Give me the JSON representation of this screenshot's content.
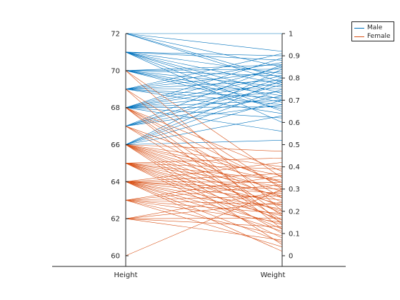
{
  "chart_data": {
    "type": "parallel-coordinates",
    "axes": [
      {
        "name": "Height",
        "range": [
          60,
          72
        ],
        "ticks": [
          60,
          62,
          64,
          66,
          68,
          70,
          72
        ],
        "tick_labels": [
          "60",
          "62",
          "64",
          "66",
          "68",
          "70",
          "72"
        ],
        "side": "left"
      },
      {
        "name": "Weight",
        "range": [
          0,
          1
        ],
        "ticks": [
          0,
          0.1,
          0.2,
          0.3,
          0.4,
          0.5,
          0.6,
          0.7,
          0.8,
          0.9,
          1
        ],
        "tick_labels": [
          "0",
          "0.1",
          "0.2",
          "0.3",
          "0.4",
          "0.5",
          "0.6",
          "0.7",
          "0.8",
          "0.9",
          "1"
        ],
        "side": "right"
      }
    ],
    "series": [
      {
        "name": "Male",
        "color": "#0072BD",
        "lines": [
          [
            72,
            1.0
          ],
          [
            72,
            0.92
          ],
          [
            72,
            0.85
          ],
          [
            72,
            0.8
          ],
          [
            72,
            0.78
          ],
          [
            71,
            0.9
          ],
          [
            71,
            0.88
          ],
          [
            71,
            0.82
          ],
          [
            71,
            0.77
          ],
          [
            71,
            0.73
          ],
          [
            71,
            0.7
          ],
          [
            71,
            0.65
          ],
          [
            71,
            0.6
          ],
          [
            70,
            0.86
          ],
          [
            70,
            0.84
          ],
          [
            70,
            0.81
          ],
          [
            70,
            0.76
          ],
          [
            70,
            0.72
          ],
          [
            70,
            0.69
          ],
          [
            70,
            0.66
          ],
          [
            69,
            0.91
          ],
          [
            69,
            0.87
          ],
          [
            69,
            0.83
          ],
          [
            69,
            0.79
          ],
          [
            69,
            0.75
          ],
          [
            69,
            0.71
          ],
          [
            69,
            0.68
          ],
          [
            69,
            0.64
          ],
          [
            68,
            0.89
          ],
          [
            68,
            0.85
          ],
          [
            68,
            0.81
          ],
          [
            68,
            0.78
          ],
          [
            68,
            0.74
          ],
          [
            68,
            0.7
          ],
          [
            68,
            0.67
          ],
          [
            68,
            0.62
          ],
          [
            68,
            0.56
          ],
          [
            67,
            0.86
          ],
          [
            67,
            0.8
          ],
          [
            67,
            0.77
          ],
          [
            67,
            0.72
          ],
          [
            67,
            0.68
          ],
          [
            66,
            0.84
          ],
          [
            66,
            0.79
          ],
          [
            66,
            0.75
          ],
          [
            66,
            0.7
          ],
          [
            66,
            0.63
          ],
          [
            66,
            0.52
          ]
        ]
      },
      {
        "name": "Female",
        "color": "#D95319",
        "lines": [
          [
            70,
            0.35
          ],
          [
            70,
            0.2
          ],
          [
            69,
            0.3
          ],
          [
            69,
            0.14
          ],
          [
            68,
            0.38
          ],
          [
            68,
            0.31
          ],
          [
            68,
            0.26
          ],
          [
            68,
            0.18
          ],
          [
            68,
            0.12
          ],
          [
            67,
            0.33
          ],
          [
            67,
            0.24
          ],
          [
            67,
            0.16
          ],
          [
            66,
            0.47
          ],
          [
            66,
            0.4
          ],
          [
            66,
            0.36
          ],
          [
            66,
            0.33
          ],
          [
            66,
            0.29
          ],
          [
            66,
            0.26
          ],
          [
            66,
            0.22
          ],
          [
            66,
            0.19
          ],
          [
            66,
            0.15
          ],
          [
            66,
            0.1
          ],
          [
            66,
            0.05
          ],
          [
            65,
            0.44
          ],
          [
            65,
            0.39
          ],
          [
            65,
            0.34
          ],
          [
            65,
            0.31
          ],
          [
            65,
            0.27
          ],
          [
            65,
            0.23
          ],
          [
            65,
            0.2
          ],
          [
            65,
            0.16
          ],
          [
            65,
            0.12
          ],
          [
            65,
            0.08
          ],
          [
            64,
            0.42
          ],
          [
            64,
            0.37
          ],
          [
            64,
            0.33
          ],
          [
            64,
            0.3
          ],
          [
            64,
            0.28
          ],
          [
            64,
            0.25
          ],
          [
            64,
            0.21
          ],
          [
            64,
            0.18
          ],
          [
            64,
            0.14
          ],
          [
            64,
            0.11
          ],
          [
            64,
            0.06
          ],
          [
            64,
            0.02
          ],
          [
            63,
            0.36
          ],
          [
            63,
            0.32
          ],
          [
            63,
            0.27
          ],
          [
            63,
            0.23
          ],
          [
            63,
            0.19
          ],
          [
            63,
            0.15
          ],
          [
            63,
            0.09
          ],
          [
            63,
            0.04
          ],
          [
            62,
            0.29
          ],
          [
            62,
            0.24
          ],
          [
            62,
            0.17
          ],
          [
            62,
            0.13
          ],
          [
            62,
            0.07
          ],
          [
            60,
            0.3
          ]
        ]
      }
    ],
    "legend": {
      "position": "top-right",
      "entries": [
        "Male",
        "Female"
      ]
    },
    "grid": false
  }
}
